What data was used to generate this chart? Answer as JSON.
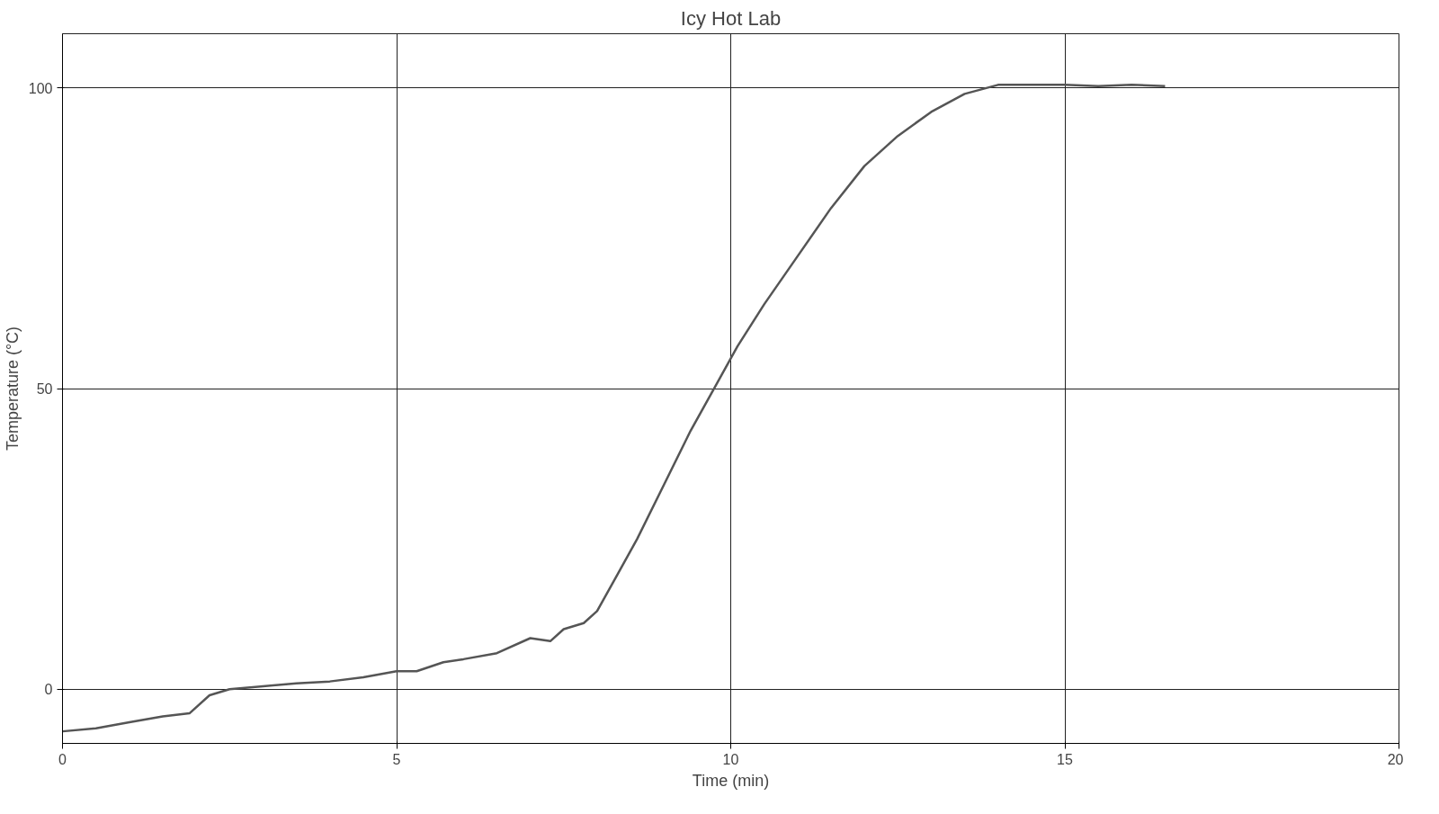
{
  "chart_data": {
    "type": "line",
    "title": "Icy Hot Lab",
    "xlabel": "Time (min)",
    "ylabel": "Temperature (°C)",
    "xlim": [
      0,
      20
    ],
    "ylim": [
      -9,
      109
    ],
    "xticks": [
      0,
      5,
      10,
      15,
      20
    ],
    "yticks": [
      0,
      50,
      100
    ],
    "grid": true,
    "marker": "none",
    "line_style": "solid",
    "series": [
      {
        "color": "#555555",
        "x": [
          0,
          0.5,
          1,
          1.5,
          1.9,
          2.2,
          2.5,
          3,
          3.5,
          4,
          4.5,
          5,
          5.3,
          5.7,
          6,
          6.5,
          7,
          7.3,
          7.5,
          7.8,
          8,
          8.3,
          8.6,
          9,
          9.4,
          9.8,
          10.1,
          10.5,
          11,
          11.5,
          12,
          12.5,
          13,
          13.5,
          14,
          14.5,
          15,
          15.5,
          16,
          16.5
        ],
        "values": [
          -7,
          -6.5,
          -5.5,
          -4.5,
          -4,
          -1,
          0,
          0.5,
          1,
          1.3,
          2,
          3,
          3,
          4.5,
          5,
          6,
          8.5,
          8,
          10,
          11,
          13,
          19,
          25,
          34,
          43,
          51,
          57,
          64,
          72,
          80,
          87,
          92,
          96,
          99,
          100.5,
          100.5,
          100.5,
          100.3,
          100.5,
          100.3
        ]
      }
    ]
  }
}
